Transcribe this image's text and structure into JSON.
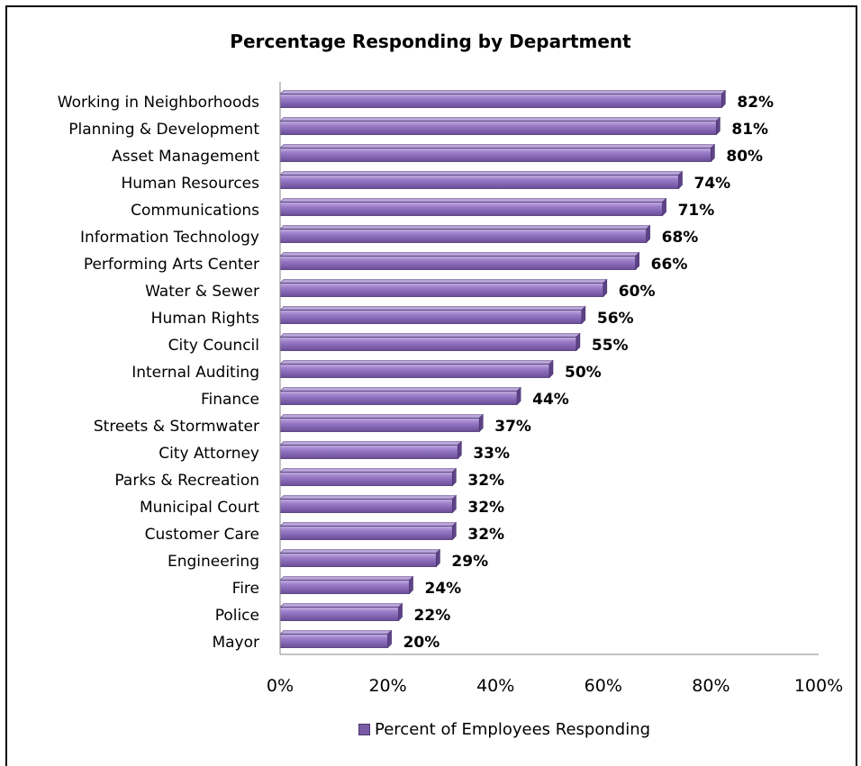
{
  "chart_data": {
    "type": "bar",
    "orientation": "horizontal",
    "title": "Percentage Responding by Department",
    "xlabel": "",
    "ylabel": "",
    "xlim": [
      0,
      100
    ],
    "xticks": [
      "0%",
      "20%",
      "40%",
      "60%",
      "80%",
      "100%"
    ],
    "categories": [
      "Working in Neighborhoods",
      "Planning & Development",
      "Asset Management",
      "Human Resources",
      "Communications",
      "Information Technology",
      "Performing Arts Center",
      "Water & Sewer",
      "Human Rights",
      "City Council",
      "Internal Auditing",
      "Finance",
      "Streets & Stormwater",
      "City Attorney",
      "Parks & Recreation",
      "Municipal Court",
      "Customer Care",
      "Engineering",
      "Fire",
      "Police",
      "Mayor"
    ],
    "series": [
      {
        "name": "Percent of Employees Responding",
        "values": [
          82,
          81,
          80,
          74,
          71,
          68,
          66,
          60,
          56,
          55,
          50,
          44,
          37,
          33,
          32,
          32,
          32,
          29,
          24,
          22,
          20
        ],
        "labels": [
          "82%",
          "81%",
          "80%",
          "74%",
          "71%",
          "68%",
          "66%",
          "60%",
          "56%",
          "55%",
          "50%",
          "44%",
          "37%",
          "33%",
          "32%",
          "32%",
          "32%",
          "29%",
          "24%",
          "22%",
          "20%"
        ],
        "color": "#8a6bb8"
      }
    ],
    "grid": false,
    "legend_position": "bottom"
  }
}
